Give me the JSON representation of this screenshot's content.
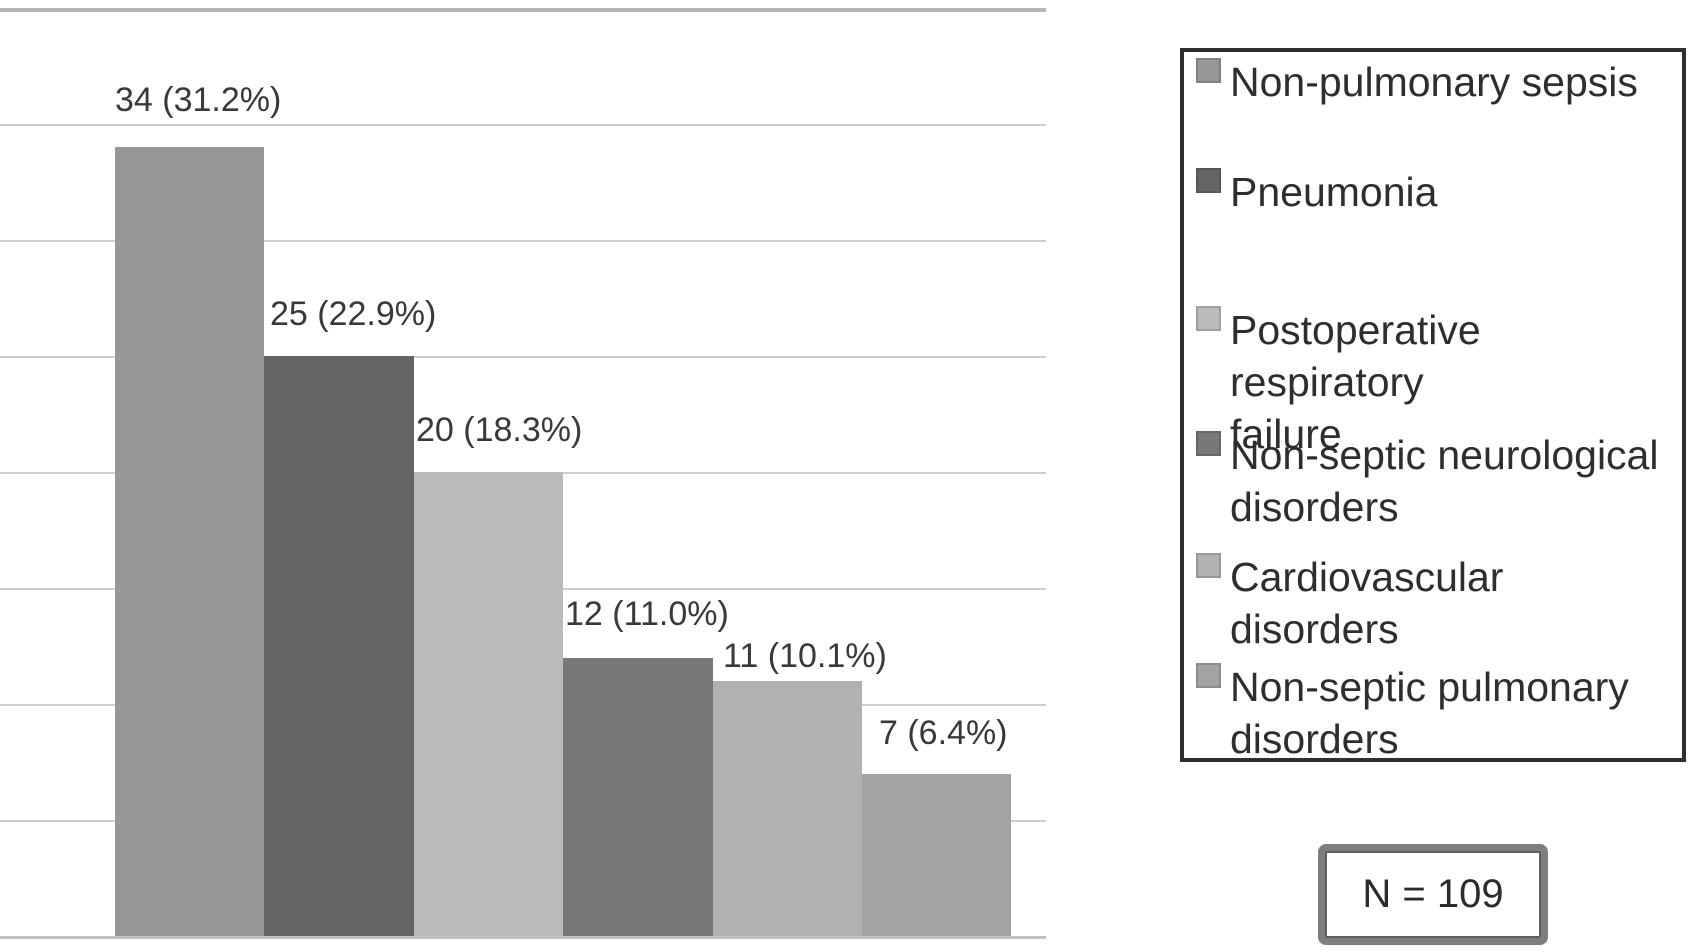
{
  "chart_data": {
    "type": "bar",
    "title": "",
    "xlabel": "",
    "ylabel": "",
    "categories": [
      "Non-pulmonary sepsis",
      "Pneumonia",
      "Postoperative respiratory failure",
      "Non-septic neurological disorders",
      "Cardiovascular disorders",
      "Non-septic pulmonary disorders"
    ],
    "values": [
      34,
      25,
      20,
      12,
      11,
      7
    ],
    "percent_of_total": [
      31.2,
      22.9,
      18.3,
      11.0,
      10.1,
      6.4
    ],
    "bar_labels": [
      "34 (31.2%)",
      "25 (22.9%)",
      "20 (18.3%)",
      "12 (11.0%)",
      "11 (10.1%)",
      "7 (6.4%)"
    ],
    "bar_colors": [
      "#97979a",
      "#656568",
      "#bbbbbe",
      "#78787b",
      "#b1b1b4",
      "#a3a3a6"
    ],
    "ylim": [
      0,
      40
    ],
    "grid_step": 5,
    "grid": true,
    "y_tick_labels_visible": false,
    "legend_position": "right",
    "annotation": "N = 109"
  },
  "legend": {
    "border_color": "#2f2f2f",
    "items": [
      {
        "label": "Non-pulmonary sepsis",
        "color": "#97979a"
      },
      {
        "label": "Pneumonia",
        "color": "#656568"
      },
      {
        "label": "Postoperative respiratory\nfailure",
        "color": "#bbbbbe"
      },
      {
        "label": "Non-septic neurological\ndisorders",
        "color": "#78787b"
      },
      {
        "label": "Cardiovascular disorders",
        "color": "#b1b1b4"
      },
      {
        "label": "Non-septic pulmonary\ndisorders",
        "color": "#a3a3a6"
      }
    ]
  },
  "sample_size_box": {
    "text": "N = 109",
    "border_color": "#7c7e80"
  }
}
